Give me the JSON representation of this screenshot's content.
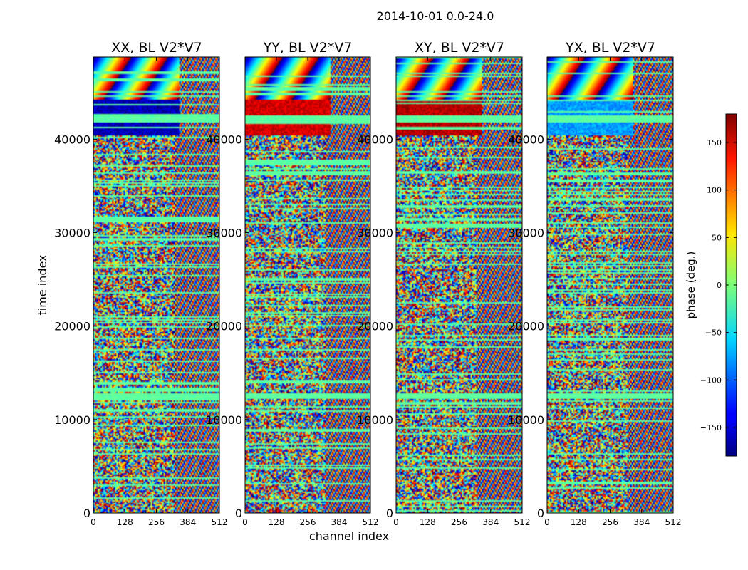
{
  "chart_data": {
    "type": "heatmap",
    "title": "2014-10-01 0.0-24.0",
    "xlabel": "channel index",
    "ylabel": "time index",
    "xlim": [
      0,
      512
    ],
    "ylim": [
      0,
      48800
    ],
    "x_ticks": [
      "0",
      "128",
      "256",
      "384",
      "512"
    ],
    "y_ticks": [
      "0",
      "10000",
      "20000",
      "30000",
      "40000"
    ],
    "x_tick_values": [
      0,
      128,
      256,
      384,
      512
    ],
    "y_tick_values": [
      0,
      10000,
      20000,
      30000,
      40000
    ],
    "panels": [
      {
        "name": "xx",
        "title": "XX, BL V2*V7"
      },
      {
        "name": "yy",
        "title": "YY, BL V2*V7"
      },
      {
        "name": "xy",
        "title": "XY, BL V2*V7"
      },
      {
        "name": "yx",
        "title": "YX, BL V2*V7"
      }
    ],
    "colorbar": {
      "label": "phase (deg.)",
      "range": [
        -180,
        180
      ],
      "ticks": [
        "−150",
        "−100",
        "−50",
        "0",
        "50",
        "100",
        "150"
      ],
      "tick_values": [
        -150,
        -100,
        -50,
        0,
        50,
        100,
        150
      ],
      "colormap": "jet"
    }
  }
}
